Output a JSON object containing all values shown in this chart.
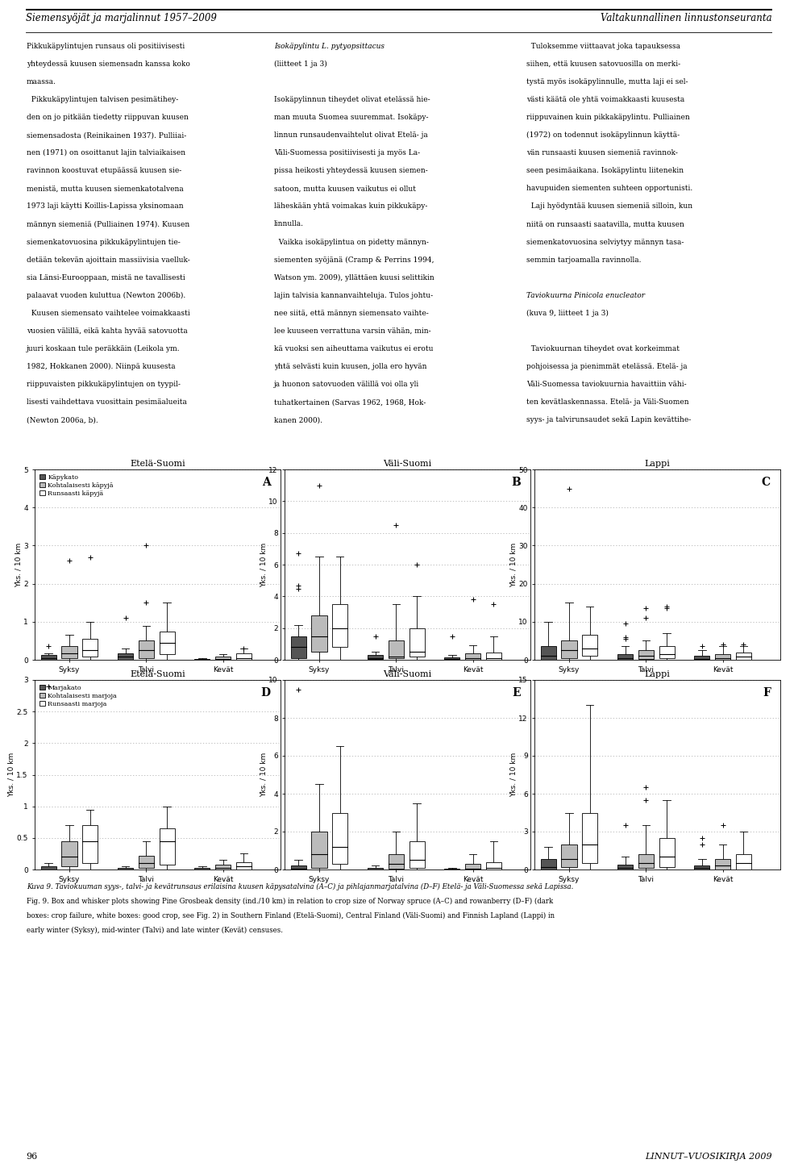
{
  "panels": [
    {
      "label": "A",
      "title": "Etelä-Suomi",
      "ylim": [
        0,
        5
      ],
      "yticks": [
        0,
        1,
        2,
        3,
        4,
        5
      ],
      "ylabel": "Yks. / 10 km",
      "row": 0,
      "col": 0,
      "seasons": [
        "Syksy",
        "Talvi",
        "Kevät"
      ],
      "series": [
        {
          "name": "Käpykato",
          "color": "#555555",
          "boxes": [
            {
              "q1": 0.0,
              "med": 0.05,
              "q3": 0.12,
              "whislo": 0.0,
              "whishi": 0.18,
              "fliers": [
                0.35
              ]
            },
            {
              "q1": 0.0,
              "med": 0.08,
              "q3": 0.18,
              "whislo": 0.0,
              "whishi": 0.3,
              "fliers": [
                1.1
              ]
            },
            {
              "q1": 0.0,
              "med": 0.0,
              "q3": 0.02,
              "whislo": 0.0,
              "whishi": 0.05,
              "fliers": []
            }
          ]
        },
        {
          "name": "Kohtalaisesti käpyjä",
          "color": "#bbbbbb",
          "boxes": [
            {
              "q1": 0.05,
              "med": 0.18,
              "q3": 0.35,
              "whislo": 0.0,
              "whishi": 0.65,
              "fliers": [
                2.6
              ]
            },
            {
              "q1": 0.05,
              "med": 0.25,
              "q3": 0.5,
              "whislo": 0.0,
              "whishi": 0.9,
              "fliers": [
                1.5,
                3.0
              ]
            },
            {
              "q1": 0.0,
              "med": 0.02,
              "q3": 0.08,
              "whislo": 0.0,
              "whishi": 0.15,
              "fliers": []
            }
          ]
        },
        {
          "name": "Runsaasti käpyjä",
          "color": "#ffffff",
          "boxes": [
            {
              "q1": 0.08,
              "med": 0.25,
              "q3": 0.55,
              "whislo": 0.0,
              "whishi": 1.0,
              "fliers": [
                2.7
              ]
            },
            {
              "q1": 0.15,
              "med": 0.45,
              "q3": 0.75,
              "whislo": 0.0,
              "whishi": 1.5,
              "fliers": []
            },
            {
              "q1": 0.0,
              "med": 0.05,
              "q3": 0.18,
              "whislo": 0.0,
              "whishi": 0.3,
              "fliers": [
                0.3
              ]
            }
          ]
        }
      ]
    },
    {
      "label": "B",
      "title": "Väli-Suomi",
      "ylim": [
        0,
        12
      ],
      "yticks": [
        0,
        2,
        4,
        6,
        8,
        10,
        12
      ],
      "ylabel": "Yks. / 10 km",
      "row": 0,
      "col": 1,
      "seasons": [
        "Syksy",
        "Talvi",
        "Kevät"
      ],
      "series": [
        {
          "name": "Käpykato",
          "color": "#555555",
          "boxes": [
            {
              "q1": 0.1,
              "med": 0.8,
              "q3": 1.5,
              "whislo": 0.0,
              "whishi": 2.2,
              "fliers": [
                4.5,
                4.7,
                6.7
              ]
            },
            {
              "q1": 0.05,
              "med": 0.12,
              "q3": 0.3,
              "whislo": 0.0,
              "whishi": 0.5,
              "fliers": [
                1.5
              ]
            },
            {
              "q1": 0.0,
              "med": 0.05,
              "q3": 0.15,
              "whislo": 0.0,
              "whishi": 0.3,
              "fliers": [
                1.5
              ]
            }
          ]
        },
        {
          "name": "Kohtalaisesti käpyjä",
          "color": "#bbbbbb",
          "boxes": [
            {
              "q1": 0.5,
              "med": 1.5,
              "q3": 2.8,
              "whislo": 0.0,
              "whishi": 6.5,
              "fliers": [
                11.0
              ]
            },
            {
              "q1": 0.08,
              "med": 0.2,
              "q3": 1.2,
              "whislo": 0.0,
              "whishi": 3.5,
              "fliers": [
                8.5
              ]
            },
            {
              "q1": 0.0,
              "med": 0.1,
              "q3": 0.4,
              "whislo": 0.0,
              "whishi": 0.9,
              "fliers": [
                3.8
              ]
            }
          ]
        },
        {
          "name": "Runsaasti käpyjä",
          "color": "#ffffff",
          "boxes": [
            {
              "q1": 0.8,
              "med": 2.0,
              "q3": 3.5,
              "whislo": 0.0,
              "whishi": 6.5,
              "fliers": []
            },
            {
              "q1": 0.2,
              "med": 0.5,
              "q3": 2.0,
              "whislo": 0.0,
              "whishi": 4.0,
              "fliers": [
                6.0
              ]
            },
            {
              "q1": 0.0,
              "med": 0.12,
              "q3": 0.45,
              "whislo": 0.0,
              "whishi": 1.5,
              "fliers": [
                3.5
              ]
            }
          ]
        }
      ]
    },
    {
      "label": "C",
      "title": "Lappi",
      "ylim": [
        0,
        50
      ],
      "yticks": [
        0,
        10,
        20,
        30,
        40,
        50
      ],
      "ylabel": "Yks. / 10 km",
      "row": 0,
      "col": 2,
      "seasons": [
        "Syksy",
        "Talvi",
        "Kevät"
      ],
      "series": [
        {
          "name": "Käpykato",
          "color": "#555555",
          "boxes": [
            {
              "q1": 0.0,
              "med": 1.0,
              "q3": 3.5,
              "whislo": 0.0,
              "whishi": 10.0,
              "fliers": []
            },
            {
              "q1": 0.0,
              "med": 0.5,
              "q3": 1.5,
              "whislo": 0.0,
              "whishi": 3.5,
              "fliers": [
                5.5,
                6.0,
                9.5
              ]
            },
            {
              "q1": 0.0,
              "med": 0.3,
              "q3": 1.0,
              "whislo": 0.0,
              "whishi": 2.5,
              "fliers": [
                3.5
              ]
            }
          ]
        },
        {
          "name": "Kohtalaisesti käpyjä",
          "color": "#bbbbbb",
          "boxes": [
            {
              "q1": 0.5,
              "med": 2.5,
              "q3": 5.0,
              "whislo": 0.0,
              "whishi": 15.0,
              "fliers": [
                45.0
              ]
            },
            {
              "q1": 0.3,
              "med": 1.0,
              "q3": 2.5,
              "whislo": 0.0,
              "whishi": 5.0,
              "fliers": [
                11.0,
                13.5
              ]
            },
            {
              "q1": 0.0,
              "med": 0.5,
              "q3": 1.5,
              "whislo": 0.0,
              "whishi": 3.5,
              "fliers": [
                4.0
              ]
            }
          ]
        },
        {
          "name": "Runsaasti käpyjä",
          "color": "#ffffff",
          "boxes": [
            {
              "q1": 1.0,
              "med": 3.0,
              "q3": 6.5,
              "whislo": 0.0,
              "whishi": 14.0,
              "fliers": []
            },
            {
              "q1": 0.5,
              "med": 1.5,
              "q3": 3.5,
              "whislo": 0.0,
              "whishi": 7.0,
              "fliers": [
                13.5,
                14.0
              ]
            },
            {
              "q1": 0.0,
              "med": 0.8,
              "q3": 2.0,
              "whislo": 0.0,
              "whishi": 3.5,
              "fliers": [
                4.0
              ]
            }
          ]
        }
      ]
    },
    {
      "label": "D",
      "title": "Etelä-Suomi",
      "ylim": [
        0,
        3.0
      ],
      "yticks": [
        0.0,
        0.5,
        1.0,
        1.5,
        2.0,
        2.5,
        3.0
      ],
      "ylabel": "Yks. / 10 km",
      "row": 1,
      "col": 0,
      "seasons": [
        "Syksy",
        "Talvi",
        "Kevät"
      ],
      "series": [
        {
          "name": "Marjakato",
          "color": "#555555",
          "boxes": [
            {
              "q1": 0.0,
              "med": 0.0,
              "q3": 0.05,
              "whislo": 0.0,
              "whishi": 0.1,
              "fliers": [
                2.9
              ]
            },
            {
              "q1": 0.0,
              "med": 0.0,
              "q3": 0.02,
              "whislo": 0.0,
              "whishi": 0.05,
              "fliers": []
            },
            {
              "q1": 0.0,
              "med": 0.0,
              "q3": 0.02,
              "whislo": 0.0,
              "whishi": 0.05,
              "fliers": []
            }
          ]
        },
        {
          "name": "Kohtalaisesti marjoja",
          "color": "#bbbbbb",
          "boxes": [
            {
              "q1": 0.05,
              "med": 0.2,
              "q3": 0.45,
              "whislo": 0.0,
              "whishi": 0.7,
              "fliers": []
            },
            {
              "q1": 0.02,
              "med": 0.1,
              "q3": 0.22,
              "whislo": 0.0,
              "whishi": 0.45,
              "fliers": []
            },
            {
              "q1": 0.0,
              "med": 0.03,
              "q3": 0.08,
              "whislo": 0.0,
              "whishi": 0.15,
              "fliers": []
            }
          ]
        },
        {
          "name": "Runsaasti marjoja",
          "color": "#ffffff",
          "boxes": [
            {
              "q1": 0.1,
              "med": 0.45,
              "q3": 0.7,
              "whislo": 0.0,
              "whishi": 0.95,
              "fliers": []
            },
            {
              "q1": 0.08,
              "med": 0.45,
              "q3": 0.65,
              "whislo": 0.0,
              "whishi": 1.0,
              "fliers": []
            },
            {
              "q1": 0.0,
              "med": 0.05,
              "q3": 0.12,
              "whislo": 0.0,
              "whishi": 0.25,
              "fliers": []
            }
          ]
        }
      ]
    },
    {
      "label": "E",
      "title": "Väli-Suomi",
      "ylim": [
        0,
        10
      ],
      "yticks": [
        0,
        2,
        4,
        6,
        8,
        10
      ],
      "ylabel": "Yks. / 10 km",
      "row": 1,
      "col": 1,
      "seasons": [
        "Syksy",
        "Talvi",
        "Kevät"
      ],
      "series": [
        {
          "name": "Marjakato",
          "color": "#555555",
          "boxes": [
            {
              "q1": 0.0,
              "med": 0.05,
              "q3": 0.2,
              "whislo": 0.0,
              "whishi": 0.5,
              "fliers": [
                9.5
              ]
            },
            {
              "q1": 0.0,
              "med": 0.02,
              "q3": 0.08,
              "whislo": 0.0,
              "whishi": 0.2,
              "fliers": []
            },
            {
              "q1": 0.0,
              "med": 0.0,
              "q3": 0.03,
              "whislo": 0.0,
              "whishi": 0.1,
              "fliers": []
            }
          ]
        },
        {
          "name": "Kohtalaisesti marjoja",
          "color": "#bbbbbb",
          "boxes": [
            {
              "q1": 0.1,
              "med": 0.8,
              "q3": 2.0,
              "whislo": 0.0,
              "whishi": 4.5,
              "fliers": []
            },
            {
              "q1": 0.05,
              "med": 0.3,
              "q3": 0.8,
              "whislo": 0.0,
              "whishi": 2.0,
              "fliers": []
            },
            {
              "q1": 0.0,
              "med": 0.05,
              "q3": 0.3,
              "whislo": 0.0,
              "whishi": 0.8,
              "fliers": []
            }
          ]
        },
        {
          "name": "Runsaasti marjoja",
          "color": "#ffffff",
          "boxes": [
            {
              "q1": 0.3,
              "med": 1.2,
              "q3": 3.0,
              "whislo": 0.0,
              "whishi": 6.5,
              "fliers": []
            },
            {
              "q1": 0.1,
              "med": 0.5,
              "q3": 1.5,
              "whislo": 0.0,
              "whishi": 3.5,
              "fliers": []
            },
            {
              "q1": 0.0,
              "med": 0.1,
              "q3": 0.4,
              "whislo": 0.0,
              "whishi": 1.5,
              "fliers": []
            }
          ]
        }
      ]
    },
    {
      "label": "F",
      "title": "Lappi",
      "ylim": [
        0,
        15
      ],
      "yticks": [
        0,
        3,
        6,
        9,
        12,
        15
      ],
      "ylabel": "Yks. / 10 km",
      "row": 1,
      "col": 2,
      "seasons": [
        "Syksy",
        "Talvi",
        "Kevät"
      ],
      "series": [
        {
          "name": "Marjakato",
          "color": "#555555",
          "boxes": [
            {
              "q1": 0.0,
              "med": 0.2,
              "q3": 0.8,
              "whislo": 0.0,
              "whishi": 1.8,
              "fliers": []
            },
            {
              "q1": 0.0,
              "med": 0.1,
              "q3": 0.4,
              "whislo": 0.0,
              "whishi": 1.0,
              "fliers": [
                3.5
              ]
            },
            {
              "q1": 0.0,
              "med": 0.1,
              "q3": 0.3,
              "whislo": 0.0,
              "whishi": 0.8,
              "fliers": [
                2.0,
                2.5
              ]
            }
          ]
        },
        {
          "name": "Kohtalaisesti marjoja",
          "color": "#bbbbbb",
          "boxes": [
            {
              "q1": 0.2,
              "med": 0.8,
              "q3": 2.0,
              "whislo": 0.0,
              "whishi": 4.5,
              "fliers": []
            },
            {
              "q1": 0.1,
              "med": 0.5,
              "q3": 1.2,
              "whislo": 0.0,
              "whishi": 3.5,
              "fliers": [
                5.5,
                6.5
              ]
            },
            {
              "q1": 0.0,
              "med": 0.3,
              "q3": 0.8,
              "whislo": 0.0,
              "whishi": 2.0,
              "fliers": [
                3.5
              ]
            }
          ]
        },
        {
          "name": "Runsaasti marjoja",
          "color": "#ffffff",
          "boxes": [
            {
              "q1": 0.5,
              "med": 2.0,
              "q3": 4.5,
              "whislo": 0.0,
              "whishi": 13.0,
              "fliers": []
            },
            {
              "q1": 0.2,
              "med": 1.0,
              "q3": 2.5,
              "whislo": 0.0,
              "whishi": 5.5,
              "fliers": []
            },
            {
              "q1": 0.0,
              "med": 0.5,
              "q3": 1.2,
              "whislo": 0.0,
              "whishi": 3.0,
              "fliers": []
            }
          ]
        }
      ]
    }
  ],
  "header_left": "Siemensyöjät ja marjalinnut 1957–2009",
  "header_right": "Valtakunnallinen linnustonseuranta",
  "page_number": "96",
  "page_right": "LINNUT–VUOSIKIRJA 2009",
  "caption_italic": "Kuva 9. Taviokuuman syys-, talvi- ja kevätrunsaus erilaisina kuusen käpysatalvina (A–C) ja pihlajanmarjatalvina (D–F) Etelä- ja Väli-Suomessa sekä Lapissa.",
  "caption_normal": [
    "Fig. 9. Box and whisker plots showing Pine Grosbeak density (ind./10 km) in relation to crop size of Norway spruce (A–C) and rowanberry (D–F) (dark",
    "boxes: crop failure, white boxes: good crop, see Fig. 2) in Southern Finland (Etelä-Suomi), Central Finland (Väli-Suomi) and Finnish Lapland (Lappi) in",
    "early winter (Syksy), mid-winter (Talvi) and late winter (Kevät) censuses."
  ],
  "col1_lines": [
    "Pikkukäpylintujen runsaus oli positiivisesti",
    "yhteydessä kuusen siemensadn kanssa koko",
    "maassa.",
    "  Pikkukäpylintujen talvisen pesimätihey-",
    "den on jo pitkään tiedetty riippuvan kuusen",
    "siemensadosta (Reinikainen 1937). Pulliiai-",
    "nen (1971) on osoittanut lajin talviaikaisen",
    "ravinnon koostuvat etupäässä kuusen sie-",
    "menistä, mutta kuusen siemenkatotalvena",
    "1973 laji käytti Koillis-Lapissa yksinomaan",
    "männyn siemeniä (Pulliainen 1974). Kuusen",
    "siemenkatovuosina pikkukäpylintujen tie-",
    "detään tekevän ajoittain massiivisia vaelluk-",
    "sia Länsi-Eurooppaan, mistä ne tavallisesti",
    "palaavat vuoden kuluttua (Newton 2006b).",
    "  Kuusen siemensato vaihtelee voimakkaasti",
    "vuosien välillä, eikä kahta hyvää satovuotta",
    "juuri koskaan tule peräkkäin (Leikola ym.",
    "1982, Hokkanen 2000). Niinpä kuusesta",
    "riippuvaisten pikkukäpylintujen on tyypil-",
    "lisesti vaihdettava vuosittain pesimäalueita",
    "(Newton 2006a, b)."
  ],
  "col2_lines": [
    "Isokäpylintu L. pytyopsittacus",
    "(liitteet 1 ja 3)",
    "",
    "Isokäpylinnun tiheydet olivat etelässä hie-",
    "man muuta Suomea suuremmat. Isokäpy-",
    "linnun runsaudenvaihtelut olivat Etelä- ja",
    "Väli-Suomessa positiivisesti ja myös La-",
    "pissa heikosti yhteydessä kuusen siemen-",
    "satoon, mutta kuusen vaikutus ei ollut",
    "läheskään yhtä voimakas kuin pikkukäpy-",
    "linnulla.",
    "  Vaikka isokäpylintua on pidetty männyn-",
    "siementen syöjänä (Cramp & Perrins 1994,",
    "Watson ym. 2009), yllättäen kuusi selittikin",
    "lajin talvisia kannanvaihteluja. Tulos johtu-",
    "nee siitä, että männyn siemensato vaihte-",
    "lee kuuseen verrattuna varsin vähän, min-",
    "kä vuoksi sen aiheuttama vaikutus ei erotu",
    "yhtä selvästi kuin kuusen, jolla ero hyvän",
    "ja huonon satovuoden välillä voi olla yli",
    "tuhatkertainen (Sarvas 1962, 1968, Hok-",
    "kanen 2000)."
  ],
  "col2_italic_indices": [
    0
  ],
  "col3_lines": [
    "  Tuloksemme viittaavat joka tapauksessa",
    "siihen, että kuusen satovuosilla on merki-",
    "tystä myös isokäpylinnulle, mutta laji ei sel-",
    "västi käätä ole yhtä voimakkaasti kuusesta",
    "riippuvainen kuin pikkakäpylintu. Pulliainen",
    "(1972) on todennut isokäpylinnun käyttä-",
    "vän runsaasti kuusen siemeniä ravinnok-",
    "seen pesimäaikana. Isokäpylintu liitenekin",
    "havupuiden siementen suhteen opportunisti.",
    "  Laji hyödyntää kuusen siemeniä silloin, kun",
    "niitä on runsaasti saatavilla, mutta kuusen",
    "siemenkatovuosina selviytyy männyn tasa-",
    "semmin tarjoamalla ravinnolla.",
    "",
    "Taviokuurna Pinicola enucleator",
    "(kuva 9, liitteet 1 ja 3)",
    "",
    "  Taviokuurnan tiheydet ovat korkeimmat",
    "pohjoisessa ja pienimmät etelässä. Etelä- ja",
    "Väli-Suomessa taviokuurnia havaittiin vähi-",
    "ten kevätlaskennassa. Etelä- ja Väli-Suomen",
    "syys- ja talvirunsaudet sekä Lapin kevättihe-"
  ],
  "col3_italic_indices": [
    14
  ]
}
